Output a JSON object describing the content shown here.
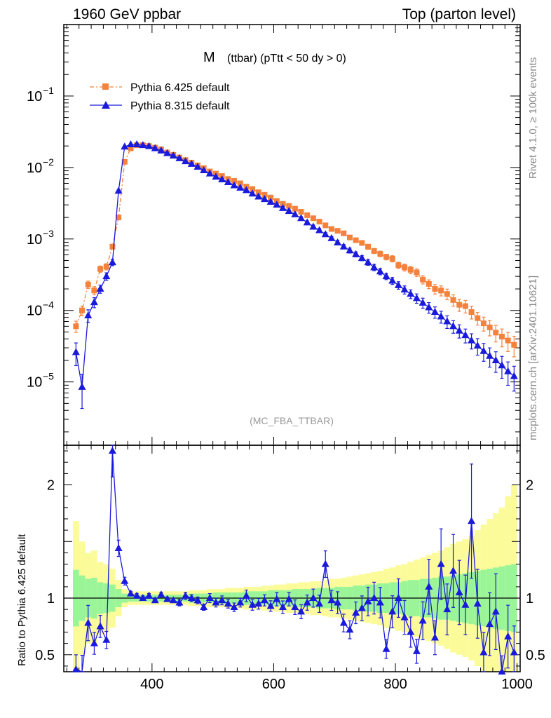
{
  "header": {
    "left": "1960 GeV ppbar",
    "right": "Top (parton level)"
  },
  "side_labels": {
    "rivet": "Rivet 4.1.0, ≥ 100k events",
    "mcplots": "mcplots.cern.ch [arXiv:2401.10621]"
  },
  "analysis_tag": "(MC_FBA_TTBAR)",
  "plot_title": {
    "main": "M",
    "sub": "(ttbar) (pTtt < 50 dy > 0)"
  },
  "colors": {
    "pythia6": "#f5823c",
    "pythia8": "#1a1adc",
    "band_inner": "#99f598",
    "band_outer": "#fbfb9a"
  },
  "chart_data": [
    {
      "type": "line",
      "panel": "main",
      "yscale": "log",
      "xlim": [
        255,
        1005
      ],
      "ylim": [
        1.3e-06,
        1.0
      ],
      "x_ticks": [
        400,
        600,
        800,
        1000
      ],
      "y_ticks": [
        {
          "value": 1e-05,
          "base": "10",
          "exp": "−5"
        },
        {
          "value": 0.0001,
          "base": "10",
          "exp": "−4"
        },
        {
          "value": 0.001,
          "base": "10",
          "exp": "−3"
        },
        {
          "value": 0.01,
          "base": "10",
          "exp": "−2"
        },
        {
          "value": 0.1,
          "base": "10",
          "exp": "−1"
        }
      ],
      "legend_position": "top-left",
      "series": [
        {
          "name": "Pythia 6.425 default",
          "marker": "square",
          "x": [
            275,
            285,
            295,
            305,
            315,
            325,
            335,
            345,
            355,
            365,
            375,
            385,
            395,
            405,
            415,
            425,
            435,
            445,
            455,
            465,
            475,
            485,
            495,
            505,
            515,
            525,
            535,
            545,
            555,
            565,
            575,
            585,
            595,
            605,
            615,
            625,
            635,
            645,
            655,
            665,
            675,
            685,
            695,
            705,
            715,
            725,
            735,
            745,
            755,
            765,
            775,
            785,
            795,
            805,
            815,
            825,
            835,
            845,
            855,
            865,
            875,
            885,
            895,
            905,
            915,
            925,
            935,
            945,
            955,
            965,
            975,
            985,
            995
          ],
          "y": [
            6e-05,
            0.0001,
            0.00023,
            0.00019,
            0.00038,
            0.00041,
            0.00078,
            0.002,
            0.012,
            0.0185,
            0.0205,
            0.0205,
            0.02,
            0.019,
            0.018,
            0.0162,
            0.015,
            0.0138,
            0.0127,
            0.0117,
            0.0107,
            0.0098,
            0.0088,
            0.0082,
            0.0076,
            0.0069,
            0.0065,
            0.006,
            0.0054,
            0.005,
            0.0045,
            0.00415,
            0.0038,
            0.0034,
            0.0031,
            0.0029,
            0.00265,
            0.0024,
            0.00215,
            0.00195,
            0.00175,
            0.00155,
            0.00138,
            0.0013,
            0.0012,
            0.00105,
            0.00096,
            0.00088,
            0.00078,
            0.00068,
            0.00062,
            0.00056,
            0.00053,
            0.00043,
            0.0004,
            0.00037,
            0.00034,
            0.00027,
            0.000235,
            0.0002,
            0.00019,
            0.00017,
            0.00014,
            0.00012,
            0.000115,
            9.5e-05,
            7.8e-05,
            6.6e-05,
            5.8e-05,
            4.9e-05,
            4.3e-05,
            3.8e-05,
            3.3e-05
          ],
          "err": [
            0.18,
            0.15,
            0.12,
            0.13,
            0.1,
            0.1,
            0.08,
            0.06,
            0.03,
            0.02,
            0.02,
            0.02,
            0.02,
            0.02,
            0.02,
            0.02,
            0.02,
            0.02,
            0.02,
            0.02,
            0.02,
            0.02,
            0.03,
            0.03,
            0.03,
            0.03,
            0.03,
            0.03,
            0.03,
            0.03,
            0.04,
            0.04,
            0.04,
            0.04,
            0.04,
            0.04,
            0.05,
            0.05,
            0.05,
            0.05,
            0.05,
            0.06,
            0.06,
            0.06,
            0.06,
            0.07,
            0.07,
            0.07,
            0.08,
            0.08,
            0.09,
            0.09,
            0.1,
            0.1,
            0.11,
            0.12,
            0.12,
            0.13,
            0.14,
            0.15,
            0.16,
            0.17,
            0.18,
            0.19,
            0.2,
            0.2,
            0.2,
            0.22,
            0.24,
            0.26,
            0.28,
            0.3,
            0.32
          ]
        },
        {
          "name": "Pythia 8.315 default",
          "marker": "triangle",
          "x": [
            275,
            285,
            295,
            305,
            315,
            325,
            335,
            345,
            355,
            365,
            375,
            385,
            395,
            405,
            415,
            425,
            435,
            445,
            455,
            465,
            475,
            485,
            495,
            505,
            515,
            525,
            535,
            545,
            555,
            565,
            575,
            585,
            595,
            605,
            615,
            625,
            635,
            645,
            655,
            665,
            675,
            685,
            695,
            705,
            715,
            725,
            735,
            745,
            755,
            765,
            775,
            785,
            795,
            805,
            815,
            825,
            835,
            845,
            855,
            865,
            875,
            885,
            895,
            905,
            915,
            925,
            935,
            945,
            955,
            965,
            975,
            985,
            995
          ],
          "y": [
            2.6e-05,
            8.5e-06,
            8.5e-05,
            0.00013,
            0.0002,
            0.0003,
            0.00047,
            0.0047,
            0.0195,
            0.021,
            0.021,
            0.0205,
            0.0198,
            0.0185,
            0.0172,
            0.0158,
            0.0146,
            0.0134,
            0.0122,
            0.0112,
            0.0102,
            0.0091,
            0.0082,
            0.0074,
            0.0068,
            0.0062,
            0.0056,
            0.0052,
            0.0048,
            0.0043,
            0.0039,
            0.0036,
            0.0033,
            0.003,
            0.0027,
            0.00245,
            0.0022,
            0.00195,
            0.0017,
            0.00148,
            0.00132,
            0.00116,
            0.00102,
            0.00089,
            0.00078,
            0.00069,
            0.00061,
            0.00054,
            0.00047,
            0.0004,
            0.00035,
            0.0003,
            0.00026,
            0.000225,
            0.000195,
            0.00017,
            0.000148,
            0.000128,
            0.00011,
            9.5e-05,
            8.2e-05,
            7e-05,
            6e-05,
            5.2e-05,
            4.5e-05,
            3.8e-05,
            3.2e-05,
            2.7e-05,
            2.3e-05,
            2e-05,
            1.7e-05,
            1.4e-05,
            1.2e-05
          ],
          "err": [
            0.35,
            0.5,
            0.2,
            0.16,
            0.13,
            0.12,
            0.1,
            0.04,
            0.02,
            0.02,
            0.02,
            0.02,
            0.02,
            0.02,
            0.02,
            0.02,
            0.02,
            0.02,
            0.02,
            0.02,
            0.03,
            0.03,
            0.03,
            0.03,
            0.03,
            0.03,
            0.03,
            0.03,
            0.03,
            0.04,
            0.04,
            0.04,
            0.04,
            0.04,
            0.05,
            0.05,
            0.05,
            0.05,
            0.05,
            0.06,
            0.06,
            0.06,
            0.06,
            0.07,
            0.07,
            0.08,
            0.08,
            0.08,
            0.09,
            0.1,
            0.1,
            0.1,
            0.11,
            0.12,
            0.13,
            0.14,
            0.15,
            0.16,
            0.17,
            0.18,
            0.19,
            0.2,
            0.2,
            0.21,
            0.22,
            0.24,
            0.26,
            0.28,
            0.3,
            0.32,
            0.34,
            0.36,
            0.38
          ]
        }
      ]
    },
    {
      "type": "line",
      "panel": "ratio",
      "ylabel": "Ratio to Pythia 6.425 default",
      "xlim": [
        255,
        1005
      ],
      "ylim": [
        0.35,
        2.35
      ],
      "x_ticks": [
        400,
        600,
        800,
        1000
      ],
      "y_ticks": [
        0.5,
        1,
        2
      ],
      "reference": 1,
      "bands": {
        "x": [
          275,
          285,
          295,
          305,
          315,
          325,
          335,
          345,
          355,
          365,
          375,
          385,
          395,
          405,
          415,
          425,
          435,
          445,
          455,
          465,
          475,
          485,
          495,
          505,
          515,
          525,
          535,
          545,
          555,
          565,
          575,
          585,
          595,
          605,
          615,
          625,
          635,
          645,
          655,
          665,
          675,
          685,
          695,
          705,
          715,
          725,
          735,
          745,
          755,
          765,
          775,
          785,
          795,
          805,
          815,
          825,
          835,
          845,
          855,
          865,
          875,
          885,
          895,
          905,
          915,
          925,
          935,
          945,
          955,
          965,
          975,
          985,
          995
        ],
        "inner": [
          0.25,
          0.2,
          0.17,
          0.18,
          0.14,
          0.13,
          0.12,
          0.08,
          0.04,
          0.03,
          0.03,
          0.03,
          0.03,
          0.03,
          0.03,
          0.03,
          0.03,
          0.03,
          0.03,
          0.04,
          0.04,
          0.04,
          0.04,
          0.05,
          0.05,
          0.05,
          0.05,
          0.05,
          0.06,
          0.06,
          0.06,
          0.06,
          0.07,
          0.07,
          0.07,
          0.07,
          0.08,
          0.08,
          0.08,
          0.08,
          0.09,
          0.09,
          0.09,
          0.1,
          0.1,
          0.1,
          0.11,
          0.11,
          0.12,
          0.12,
          0.13,
          0.13,
          0.14,
          0.14,
          0.15,
          0.16,
          0.16,
          0.17,
          0.17,
          0.18,
          0.19,
          0.19,
          0.2,
          0.21,
          0.22,
          0.23,
          0.24,
          0.25,
          0.26,
          0.27,
          0.28,
          0.29,
          0.3
        ],
        "outer": [
          0.68,
          0.5,
          0.4,
          0.42,
          0.32,
          0.3,
          0.26,
          0.16,
          0.08,
          0.06,
          0.06,
          0.06,
          0.06,
          0.06,
          0.06,
          0.06,
          0.06,
          0.06,
          0.06,
          0.07,
          0.07,
          0.07,
          0.08,
          0.08,
          0.08,
          0.09,
          0.09,
          0.09,
          0.1,
          0.1,
          0.1,
          0.11,
          0.11,
          0.12,
          0.12,
          0.13,
          0.13,
          0.14,
          0.14,
          0.15,
          0.15,
          0.16,
          0.17,
          0.17,
          0.18,
          0.19,
          0.2,
          0.21,
          0.22,
          0.23,
          0.24,
          0.26,
          0.27,
          0.29,
          0.3,
          0.32,
          0.34,
          0.36,
          0.38,
          0.4,
          0.42,
          0.45,
          0.48,
          0.5,
          0.52,
          0.55,
          0.6,
          0.65,
          0.7,
          0.75,
          0.8,
          0.9,
          1.0
        ]
      },
      "series": [
        {
          "name": "Pythia 8.315 default",
          "x": [
            275,
            285,
            295,
            305,
            315,
            325,
            335,
            345,
            355,
            365,
            375,
            385,
            395,
            405,
            415,
            425,
            435,
            445,
            455,
            465,
            475,
            485,
            495,
            505,
            515,
            525,
            535,
            545,
            555,
            565,
            575,
            585,
            595,
            605,
            615,
            625,
            635,
            645,
            655,
            665,
            675,
            685,
            695,
            705,
            715,
            725,
            735,
            745,
            755,
            765,
            775,
            785,
            795,
            805,
            815,
            825,
            835,
            845,
            855,
            865,
            875,
            885,
            895,
            905,
            915,
            925,
            935,
            945,
            955,
            965,
            975,
            985,
            995
          ],
          "y": [
            0.37,
            0.33,
            0.78,
            0.6,
            0.75,
            0.63,
            2.3,
            1.44,
            1.15,
            1.04,
            1.02,
            1.0,
            1.02,
            0.98,
            1.03,
            0.99,
            0.98,
            0.96,
            1.02,
            1.0,
            0.98,
            0.92,
            1.0,
            0.96,
            0.98,
            0.95,
            0.92,
            0.96,
            1.02,
            0.94,
            0.95,
            0.98,
            0.93,
            0.99,
            0.92,
            0.99,
            0.92,
            0.88,
            0.96,
            1.0,
            0.95,
            1.3,
            0.98,
            0.96,
            0.78,
            0.72,
            0.87,
            0.91,
            0.97,
            1.0,
            0.96,
            0.55,
            0.88,
            1.0,
            0.83,
            0.7,
            0.53,
            0.8,
            1.1,
            0.65,
            1.3,
            0.9,
            1.24,
            1.05,
            0.94,
            1.68,
            0.95,
            0.52,
            0.77,
            0.88,
            0.35,
            0.66,
            0.52
          ],
          "err": [
            0.35,
            0.5,
            0.2,
            0.16,
            0.13,
            0.12,
            0.1,
            0.05,
            0.03,
            0.02,
            0.02,
            0.02,
            0.02,
            0.02,
            0.02,
            0.02,
            0.02,
            0.03,
            0.03,
            0.03,
            0.03,
            0.03,
            0.04,
            0.04,
            0.04,
            0.04,
            0.04,
            0.04,
            0.05,
            0.05,
            0.05,
            0.05,
            0.05,
            0.06,
            0.06,
            0.06,
            0.07,
            0.07,
            0.07,
            0.08,
            0.08,
            0.09,
            0.09,
            0.1,
            0.1,
            0.11,
            0.11,
            0.12,
            0.13,
            0.14,
            0.14,
            0.15,
            0.16,
            0.17,
            0.18,
            0.19,
            0.2,
            0.21,
            0.22,
            0.23,
            0.24,
            0.25,
            0.26,
            0.27,
            0.28,
            0.3,
            0.32,
            0.34,
            0.36,
            0.38,
            0.4,
            0.42,
            0.45
          ]
        }
      ]
    }
  ]
}
